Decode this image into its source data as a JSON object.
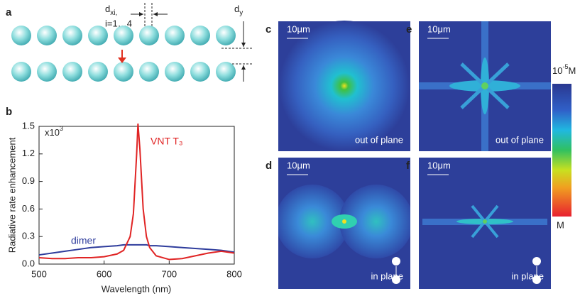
{
  "figure": {
    "panel_a": {
      "label": "a",
      "dx": {
        "symbol": "d",
        "sub": "xi,"
      },
      "index_range": "i=1…4",
      "dy": {
        "symbol": "d",
        "sub": "y"
      }
    },
    "panel_b": {
      "label": "b"
    },
    "maps": [
      {
        "label": "c",
        "scale": "10μm",
        "caption": "out of plane"
      },
      {
        "label": "d",
        "scale": "10μm",
        "caption": "in plane"
      },
      {
        "label": "e",
        "scale": "10μm",
        "caption": "out of plane"
      },
      {
        "label": "f",
        "scale": "10μm",
        "caption": "in plane"
      }
    ],
    "colorbar": {
      "top": {
        "base": "10",
        "exp": "-5",
        "unit": "M"
      },
      "bottom": "M"
    }
  },
  "chart_data": {
    "type": "line",
    "xlabel": "Wavelength (nm)",
    "ylabel": "Radiative rate enhancement",
    "annotation": {
      "base": "x10",
      "exp": "3"
    },
    "x": [
      500,
      520,
      540,
      560,
      580,
      600,
      620,
      630,
      640,
      645,
      650,
      652,
      655,
      660,
      665,
      670,
      680,
      700,
      720,
      740,
      760,
      780,
      800
    ],
    "series": [
      {
        "name": "dimer",
        "color": "#2e3c9c",
        "values": [
          0.1,
          0.12,
          0.14,
          0.16,
          0.18,
          0.19,
          0.2,
          0.21,
          0.21,
          0.21,
          0.21,
          0.21,
          0.21,
          0.21,
          0.21,
          0.2,
          0.2,
          0.19,
          0.18,
          0.17,
          0.16,
          0.15,
          0.13
        ]
      },
      {
        "name": "VNT T₃",
        "color": "#e02424",
        "values": [
          0.07,
          0.06,
          0.06,
          0.07,
          0.07,
          0.08,
          0.11,
          0.15,
          0.3,
          0.55,
          1.2,
          1.53,
          1.25,
          0.6,
          0.3,
          0.18,
          0.09,
          0.05,
          0.06,
          0.09,
          0.12,
          0.14,
          0.12
        ]
      }
    ],
    "xlim": [
      500,
      800
    ],
    "xticks": [
      500,
      600,
      700,
      800
    ],
    "ylim": [
      0,
      1.5
    ],
    "yticks": [
      {
        "value": 0,
        "label": "0.0"
      },
      0.3,
      0.6,
      0.9,
      1.2,
      1.5
    ]
  }
}
